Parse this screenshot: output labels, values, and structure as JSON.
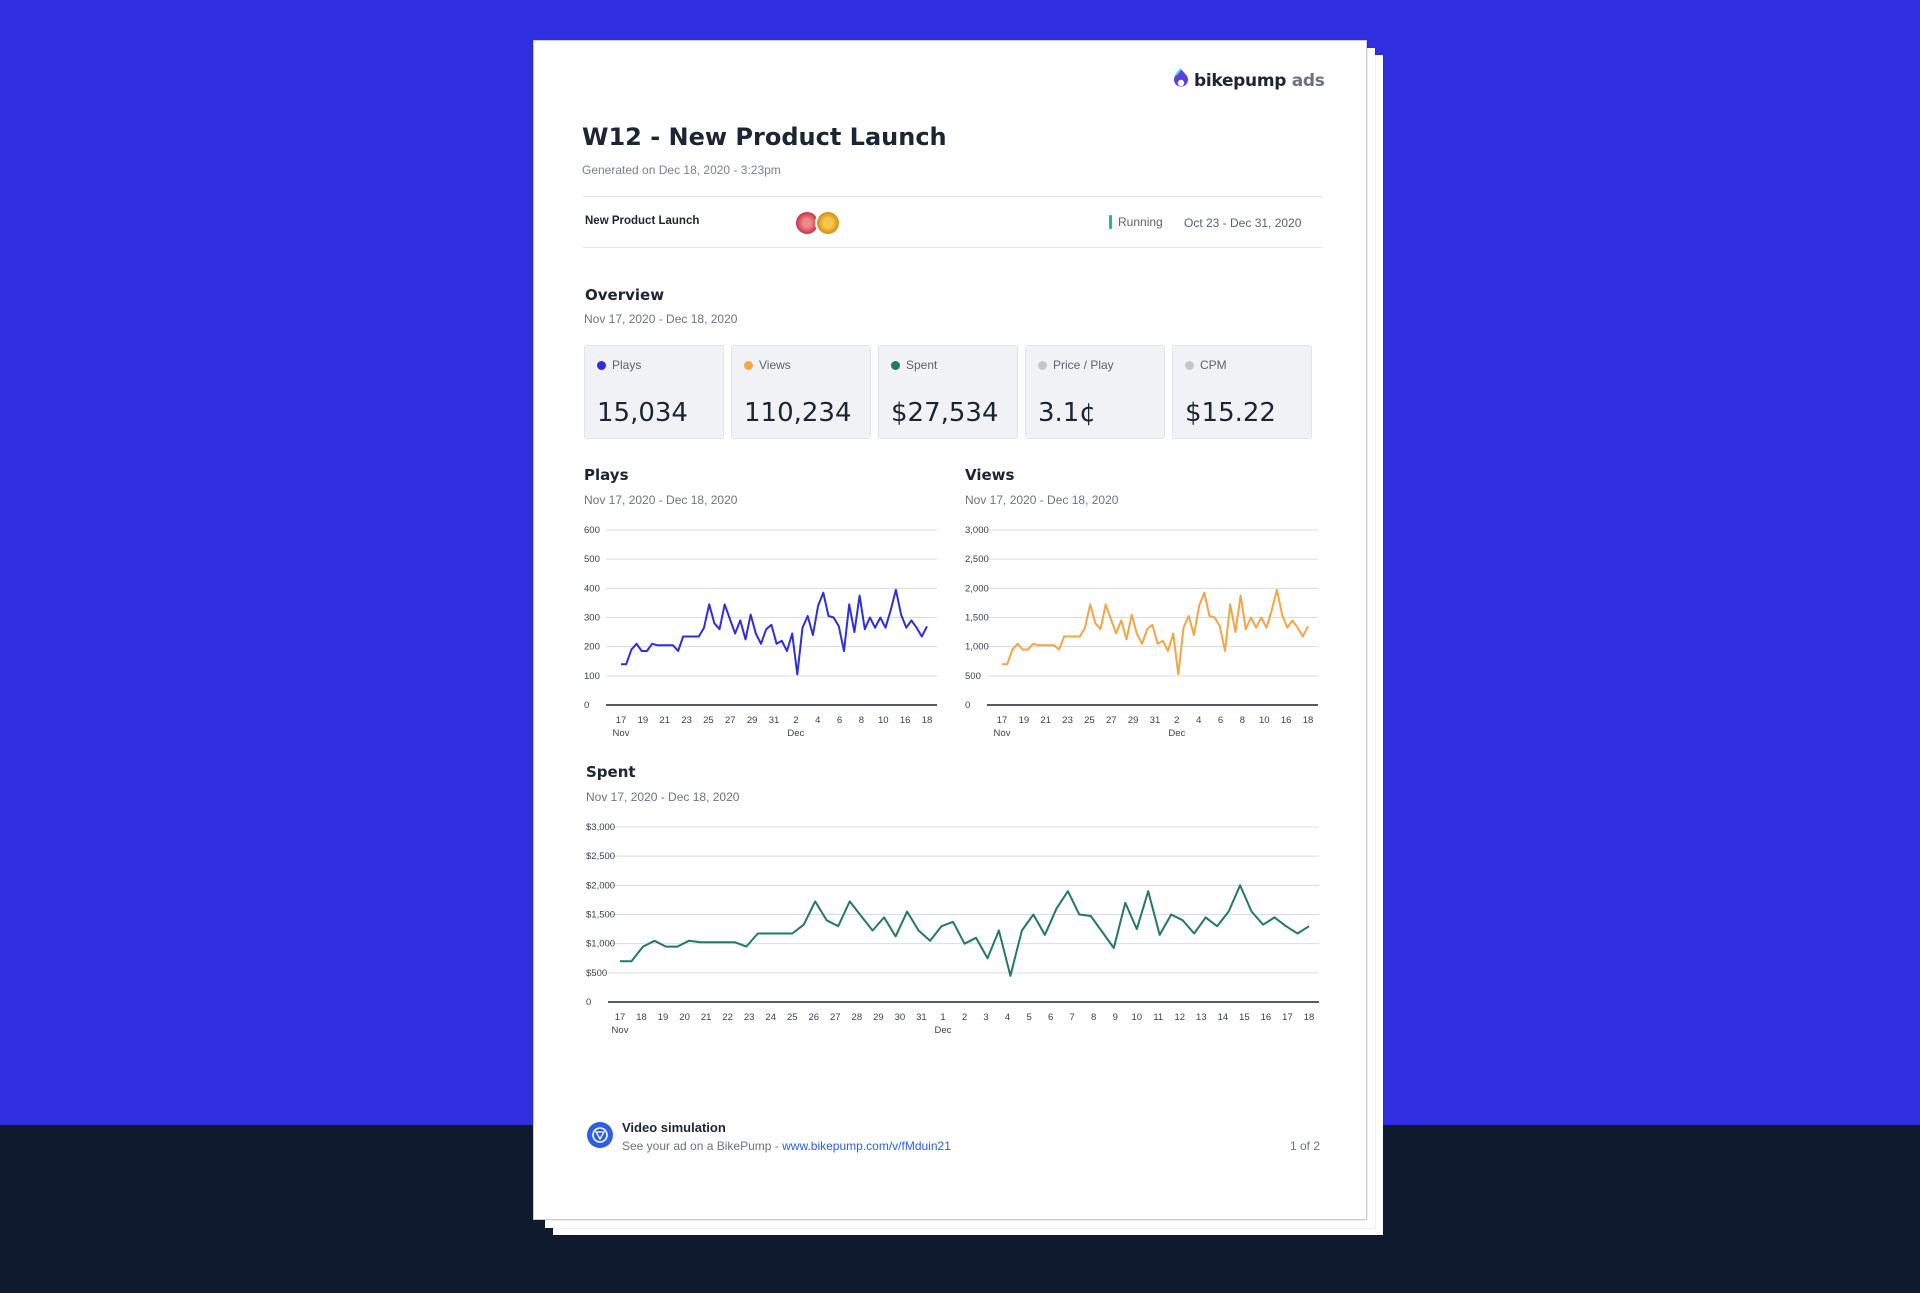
{
  "brand": {
    "name": "bikepump",
    "suffix": "ads"
  },
  "report": {
    "title": "W12 - New Product Launch",
    "generated": "Generated on Dec 18, 2020 - 3:23pm"
  },
  "campaign": {
    "name": "New Product Launch",
    "status": "Running",
    "dates": "Oct 23 - Dec 31, 2020"
  },
  "overview": {
    "title": "Overview",
    "range": "Nov 17, 2020 - Dec 18, 2020",
    "cards": [
      {
        "label": "Plays",
        "value": "15,034",
        "color": "#2f2fd9"
      },
      {
        "label": "Views",
        "value": "110,234",
        "color": "#f4a646"
      },
      {
        "label": "Spent",
        "value": "$27,534",
        "color": "#227a63"
      },
      {
        "label": "Price / Play",
        "value": "3.1¢",
        "color": "#c4c6cc"
      },
      {
        "label": "CPM",
        "value": "$15.22",
        "color": "#c4c6cc"
      }
    ]
  },
  "charts": {
    "plays": {
      "title": "Plays",
      "range": "Nov 17, 2020 - Dec 18, 2020"
    },
    "views": {
      "title": "Views",
      "range": "Nov 17, 2020 - Dec 18, 2020"
    },
    "spent": {
      "title": "Spent",
      "range": "Nov 17, 2020 - Dec 18, 2020"
    }
  },
  "chart_data": [
    {
      "type": "line",
      "title": "Plays",
      "color": "#2f2fd9",
      "ylim": [
        0,
        600
      ],
      "yticks": [
        "0",
        "100",
        "200",
        "300",
        "400",
        "500",
        "600"
      ],
      "xticks": [
        "17",
        "19",
        "21",
        "23",
        "25",
        "27",
        "29",
        "31",
        "2",
        "4",
        "6",
        "8",
        "10",
        "16",
        "18"
      ],
      "month_labels": [
        "Nov",
        "Dec"
      ],
      "values": [
        140,
        140,
        190,
        210,
        185,
        185,
        210,
        205,
        205,
        205,
        205,
        185,
        235,
        235,
        235,
        235,
        265,
        345,
        280,
        260,
        345,
        295,
        245,
        290,
        225,
        310,
        245,
        210,
        260,
        275,
        210,
        220,
        185,
        245,
        105,
        265,
        305,
        240,
        340,
        385,
        305,
        300,
        270,
        185,
        345,
        250,
        375,
        260,
        300,
        265,
        300,
        265,
        325,
        395,
        310,
        265,
        290,
        265,
        235,
        270
      ]
    },
    {
      "type": "line",
      "title": "Views",
      "color": "#f4a646",
      "ylim": [
        0,
        3000
      ],
      "yticks": [
        "0",
        "500",
        "1,000",
        "1,500",
        "2,000",
        "2,500",
        "3,000"
      ],
      "xticks": [
        "17",
        "19",
        "21",
        "23",
        "25",
        "27",
        "29",
        "31",
        "2",
        "4",
        "6",
        "8",
        "10",
        "16",
        "18"
      ],
      "month_labels": [
        "Nov",
        "Dec"
      ],
      "values": [
        700,
        700,
        950,
        1050,
        950,
        950,
        1050,
        1025,
        1025,
        1025,
        1025,
        950,
        1175,
        1175,
        1175,
        1175,
        1325,
        1725,
        1400,
        1300,
        1725,
        1475,
        1225,
        1450,
        1125,
        1550,
        1225,
        1050,
        1300,
        1375,
        1050,
        1100,
        925,
        1225,
        525,
        1325,
        1525,
        1200,
        1700,
        1925,
        1525,
        1500,
        1350,
        925,
        1725,
        1250,
        1875,
        1300,
        1500,
        1325,
        1500,
        1325,
        1625,
        1975,
        1550,
        1325,
        1450,
        1325,
        1175,
        1350
      ]
    },
    {
      "type": "line",
      "title": "Spent",
      "color": "#227a63",
      "ylim": [
        0,
        3000
      ],
      "yticks": [
        "0",
        "$500",
        "$1,000",
        "$1,500",
        "$2,000",
        "$2,500",
        "$3,000"
      ],
      "xticks": [
        "17",
        "18",
        "19",
        "20",
        "21",
        "22",
        "23",
        "24",
        "25",
        "26",
        "27",
        "28",
        "29",
        "30",
        "31",
        "1",
        "2",
        "3",
        "4",
        "5",
        "6",
        "7",
        "8",
        "9",
        "10",
        "11",
        "12",
        "13",
        "14",
        "15",
        "16",
        "17",
        "18"
      ],
      "month_labels": [
        "Nov",
        "Dec"
      ],
      "values": [
        700,
        700,
        950,
        1050,
        950,
        950,
        1050,
        1025,
        1025,
        1025,
        1025,
        950,
        1175,
        1175,
        1175,
        1175,
        1325,
        1725,
        1400,
        1300,
        1725,
        1475,
        1225,
        1450,
        1125,
        1550,
        1225,
        1050,
        1300,
        1375,
        1000,
        1100,
        750,
        1225,
        450,
        1225,
        1500,
        1150,
        1600,
        1900,
        1500,
        1475,
        1200,
        925,
        1700,
        1250,
        1900,
        1150,
        1500,
        1400,
        1175,
        1450,
        1300,
        1550,
        2000,
        1550,
        1325,
        1450,
        1300,
        1175,
        1300
      ]
    }
  ],
  "footer": {
    "title": "Video simulation",
    "text": "See your ad on a BikePump",
    "separator": "-",
    "link": "www.bikepump.com/v/fMduin21",
    "page": "1 of 2"
  }
}
